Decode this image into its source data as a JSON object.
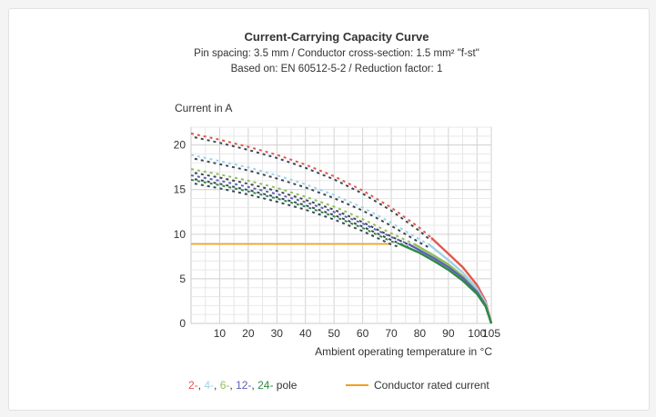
{
  "chart_data": {
    "type": "line",
    "title": "Current-Carrying Capacity Curve",
    "subtitle_lines": [
      "Pin spacing: 3.5 mm / Conductor cross-section: 1.5 mm² \"f-st\"",
      "Based on: EN 60512-5-2 / Reduction factor: 1"
    ],
    "ylabel": "Current in A",
    "xlabel": "Ambient operating temperature in °C",
    "xlim": [
      0,
      105
    ],
    "ylim": [
      0,
      22
    ],
    "x_ticks": [
      10,
      20,
      30,
      40,
      50,
      60,
      70,
      80,
      90,
      100,
      105
    ],
    "y_ticks": [
      0,
      5,
      10,
      15,
      20
    ],
    "grid": true,
    "series": [
      {
        "name": "2-",
        "color": "#e2574c",
        "dashed": [
          [
            0,
            21.3
          ],
          [
            10,
            20.6
          ],
          [
            20,
            19.8
          ],
          [
            30,
            18.9
          ],
          [
            40,
            17.8
          ],
          [
            50,
            16.5
          ],
          [
            60,
            14.9
          ],
          [
            70,
            13.0
          ],
          [
            80,
            10.7
          ],
          [
            84,
            9.6
          ]
        ],
        "solid": [
          [
            84,
            9.6
          ],
          [
            90,
            7.8
          ],
          [
            95,
            6.3
          ],
          [
            100,
            4.3
          ],
          [
            103,
            2.5
          ],
          [
            105,
            0
          ]
        ]
      },
      {
        "name": "4-",
        "color": "#9fd2ea",
        "dashed": [
          [
            0,
            18.9
          ],
          [
            10,
            18.2
          ],
          [
            20,
            17.5
          ],
          [
            30,
            16.6
          ],
          [
            40,
            15.6
          ],
          [
            50,
            14.4
          ],
          [
            60,
            13.0
          ],
          [
            70,
            11.3
          ],
          [
            80,
            9.4
          ],
          [
            83,
            8.9
          ]
        ],
        "solid": [
          [
            83,
            8.9
          ],
          [
            90,
            7.1
          ],
          [
            95,
            5.7
          ],
          [
            100,
            3.9
          ],
          [
            103,
            2.3
          ],
          [
            105,
            0
          ]
        ]
      },
      {
        "name": "6-",
        "color": "#8fbf5a",
        "dashed": [
          [
            0,
            17.3
          ],
          [
            10,
            16.7
          ],
          [
            20,
            16.0
          ],
          [
            30,
            15.2
          ],
          [
            40,
            14.2
          ],
          [
            50,
            13.1
          ],
          [
            60,
            11.7
          ],
          [
            70,
            10.1
          ],
          [
            78,
            8.9
          ]
        ],
        "solid": [
          [
            78,
            8.9
          ],
          [
            85,
            7.6
          ],
          [
            90,
            6.6
          ],
          [
            95,
            5.3
          ],
          [
            100,
            3.6
          ],
          [
            103,
            2.1
          ],
          [
            105,
            0
          ]
        ]
      },
      {
        "name": "12-",
        "color": "#5f5fb8",
        "dashed": [
          [
            0,
            16.6
          ],
          [
            10,
            16.0
          ],
          [
            20,
            15.3
          ],
          [
            30,
            14.5
          ],
          [
            40,
            13.6
          ],
          [
            50,
            12.5
          ],
          [
            60,
            11.2
          ],
          [
            70,
            9.7
          ],
          [
            76,
            8.9
          ]
        ],
        "solid": [
          [
            76,
            8.9
          ],
          [
            85,
            7.3
          ],
          [
            90,
            6.3
          ],
          [
            95,
            5.1
          ],
          [
            100,
            3.5
          ],
          [
            103,
            2.0
          ],
          [
            105,
            0
          ]
        ]
      },
      {
        "name": "24-",
        "color": "#2f8a45",
        "dashed": [
          [
            0,
            16.1
          ],
          [
            10,
            15.5
          ],
          [
            20,
            14.8
          ],
          [
            30,
            14.0
          ],
          [
            40,
            13.1
          ],
          [
            50,
            12.0
          ],
          [
            60,
            10.7
          ],
          [
            70,
            9.2
          ],
          [
            73,
            8.9
          ]
        ],
        "solid": [
          [
            73,
            8.9
          ],
          [
            80,
            7.9
          ],
          [
            85,
            7.0
          ],
          [
            90,
            6.0
          ],
          [
            95,
            4.8
          ],
          [
            100,
            3.3
          ],
          [
            103,
            1.9
          ],
          [
            105,
            0
          ]
        ]
      }
    ],
    "dark_dashed_color": "#3a4656",
    "rated_current": {
      "name": "Conductor rated current",
      "color": "#f0a020",
      "value": 8.9,
      "x_end": 70
    },
    "legend": {
      "series_labels": [
        "2-",
        "4-",
        "6-",
        "12-",
        "24-"
      ],
      "separators": [
        ",",
        ",",
        ",",
        ","
      ],
      "suffix": "pole",
      "placement": "bottom"
    }
  }
}
